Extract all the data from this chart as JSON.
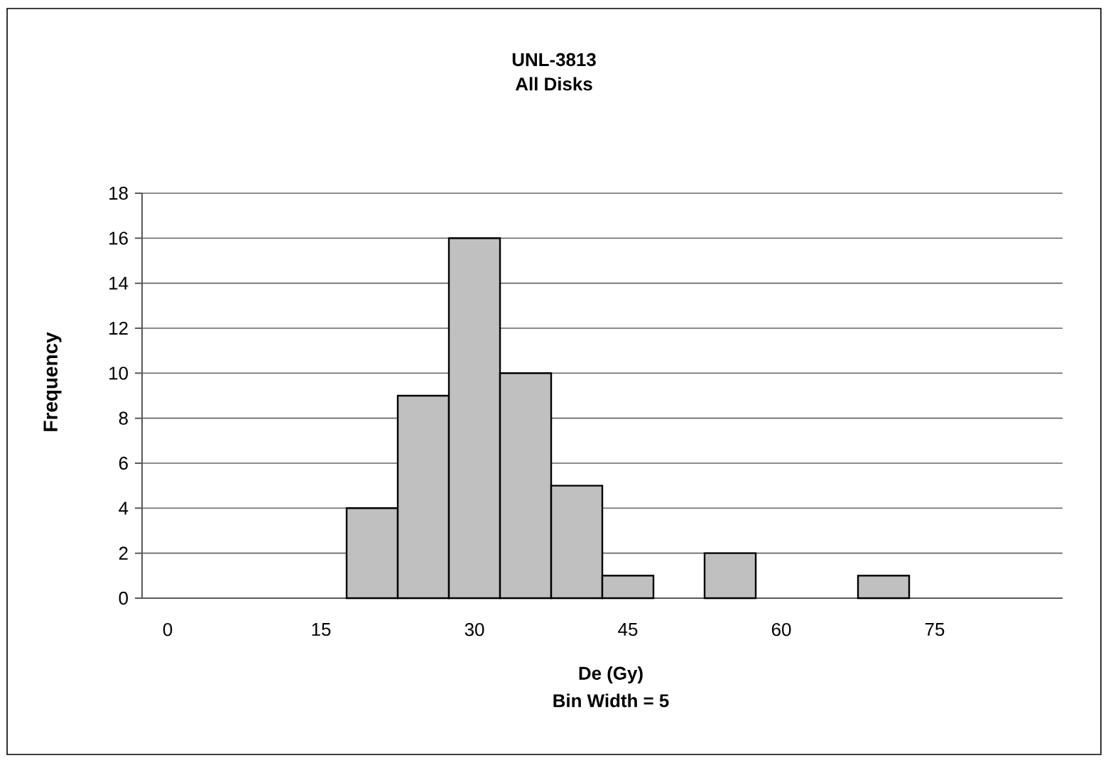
{
  "chart_data": {
    "type": "bar",
    "title": "UNL-3813",
    "subtitle": "All Disks",
    "xlabel": "De (Gy)",
    "ylabel": "Frequency",
    "annotations": [
      "Bin Width = 5"
    ],
    "categories": [
      "0",
      null,
      null,
      "15",
      null,
      null,
      "30",
      null,
      null,
      "45",
      null,
      null,
      "60",
      null,
      null,
      "75",
      null,
      null
    ],
    "values": [
      0,
      0,
      0,
      0,
      4,
      9,
      16,
      10,
      5,
      1,
      0,
      2,
      0,
      0,
      1,
      0,
      0,
      0
    ],
    "color": "#c0c0c0",
    "ylim": [
      0,
      18
    ],
    "yticks": [
      0,
      2,
      4,
      6,
      8,
      10,
      12,
      14,
      16,
      18
    ],
    "grid": "y"
  }
}
